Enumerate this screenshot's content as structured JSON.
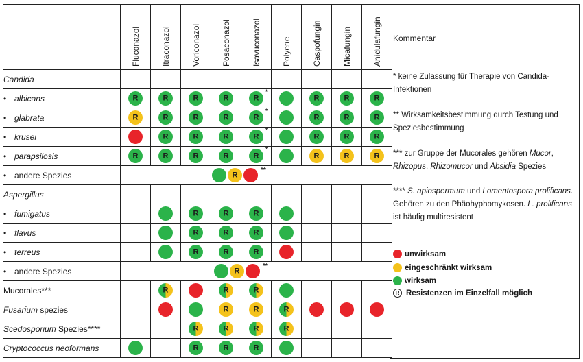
{
  "drugs": [
    "Fluconazol",
    "Itraconazol",
    "Voriconazol",
    "Posaconazol",
    "Isavuconazol",
    "Polyene",
    "Caspofungin",
    "Micafungin",
    "Anidulafungin"
  ],
  "comment_header": "Kommentar",
  "rows": [
    {
      "label": "Candida",
      "kind": "genus",
      "cells": [
        "",
        "",
        "",
        "",
        "",
        "",
        "",
        "",
        ""
      ]
    },
    {
      "label": "albicans",
      "kind": "species",
      "cells": [
        "gR",
        "gR",
        "gR",
        "gR",
        "gR*",
        "g",
        "gR",
        "gR",
        "gR"
      ]
    },
    {
      "label": "glabrata",
      "kind": "species",
      "cells": [
        "yR",
        "gR",
        "gR",
        "gR",
        "gR*",
        "g",
        "gR",
        "gR",
        "gR"
      ]
    },
    {
      "label": "krusei",
      "kind": "species",
      "cells": [
        "r",
        "gR",
        "gR",
        "gR",
        "gR*",
        "g",
        "gR",
        "gR",
        "gR"
      ]
    },
    {
      "label": "parapsilosis",
      "kind": "species",
      "cells": [
        "gR",
        "gR",
        "gR",
        "gR",
        "gR*",
        "g",
        "yR",
        "yR",
        "yR"
      ]
    },
    {
      "label": "andere Spezies",
      "kind": "other",
      "dots": [
        "g",
        "yR",
        "r"
      ],
      "dots_note": "**"
    },
    {
      "label": "Aspergillus",
      "kind": "genus",
      "cells": [
        "",
        "",
        "",
        "",
        "",
        "",
        "",
        "",
        ""
      ]
    },
    {
      "label": "fumigatus",
      "kind": "species",
      "cells": [
        "",
        "g",
        "gR",
        "gR",
        "gR",
        "g",
        "",
        "",
        ""
      ]
    },
    {
      "label": "flavus",
      "kind": "species",
      "cells": [
        "",
        "g",
        "gR",
        "gR",
        "gR",
        "g",
        "",
        "",
        ""
      ]
    },
    {
      "label": "terreus",
      "kind": "species",
      "cells": [
        "",
        "g",
        "gR",
        "gR",
        "gR",
        "r",
        "",
        "",
        ""
      ]
    },
    {
      "label": "andere Spezies",
      "kind": "other",
      "dots": [
        "g",
        "yR",
        "r"
      ],
      "dots_note": "**"
    },
    {
      "label": "Mucorales***",
      "kind": "plain",
      "cells": [
        "",
        "gyR",
        "r",
        "gyR",
        "gyR",
        "g",
        "",
        "",
        ""
      ]
    },
    {
      "label": "Fusarium spezies",
      "kind": "mixed",
      "italic": "Fusarium",
      "rest": " spezies",
      "cells": [
        "",
        "r",
        "g",
        "yR",
        "yR",
        "gyR",
        "r",
        "r",
        "r"
      ]
    },
    {
      "label": "Scedosporium Spezies****",
      "kind": "mixed",
      "italic": "Scedosporium",
      "rest": " Spezies****",
      "cells": [
        "",
        "",
        "gyR",
        "gyR",
        "gyR",
        "gyR",
        "",
        "",
        ""
      ]
    },
    {
      "label": "Cryptococcus neoformans",
      "kind": "genus",
      "cells": [
        "g",
        "",
        "gR",
        "gR",
        "gR",
        "g",
        "",
        "",
        ""
      ]
    }
  ],
  "notes": {
    "n1": "* keine Zulassung für Therapie von Candida-Infektionen",
    "n2": "** Wirksamkeitsbestimmung durch Testung und Speziesbestimmung",
    "n3_a": "*** zur Gruppe der Mucorales gehören ",
    "n3_b": "Mucor",
    "n3_c": ", ",
    "n3_d": "Rhizopus",
    "n3_e": ", ",
    "n3_f": "Rhizomucor",
    "n3_g": " und ",
    "n3_h": "Absidia",
    "n3_i": " Spezies",
    "n4_a": "**** ",
    "n4_b": "S. apiospermum",
    "n4_c": " und ",
    "n4_d": "Lomentospora prolificans",
    "n4_e": ". Gehören zu den Phäohyphomykosen. ",
    "n4_f": "L. prolificans",
    "n4_g": " ist häufig multiresistent"
  },
  "legend": [
    {
      "key": "r",
      "text": "unwirksam"
    },
    {
      "key": "y",
      "text": "eingeschränkt wirksam"
    },
    {
      "key": "g",
      "text": "wirksam"
    },
    {
      "key": "R",
      "text": "Resistenzen im Einzelfall möglich"
    }
  ],
  "resist_letter": "R",
  "bullet": "•",
  "colors": {
    "green": "#2bb34a",
    "yellow": "#f4c21b",
    "red": "#e8242a"
  }
}
